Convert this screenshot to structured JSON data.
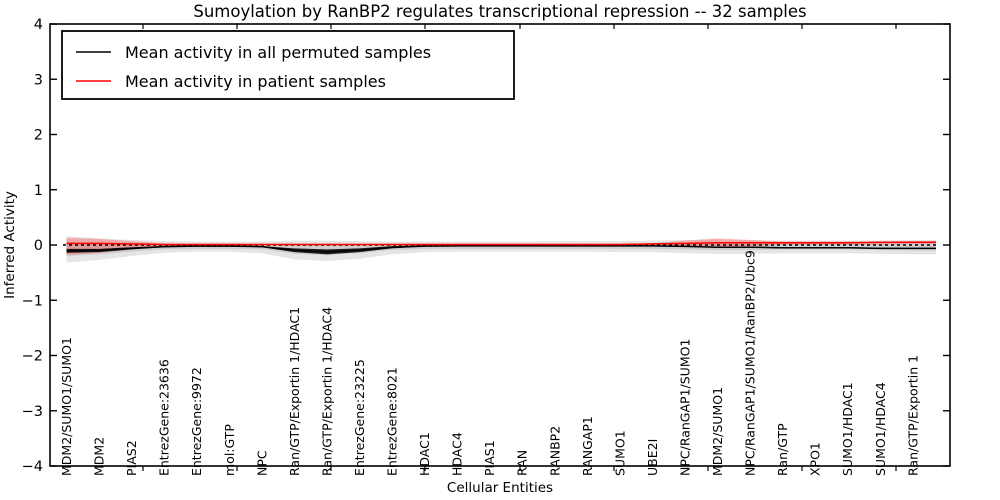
{
  "figure": {
    "title": "Sumoylation by RanBP2 regulates transcriptional repression -- 32 samples",
    "xlabel": "Cellular Entities",
    "ylabel": "Inferred Activity"
  },
  "legend": {
    "position": "upper left",
    "entries": [
      {
        "label": "Mean activity in all permuted samples",
        "color": "#000000"
      },
      {
        "label": "Mean activity in patient samples",
        "color": "#ff0000"
      }
    ]
  },
  "chart_data": {
    "type": "line",
    "title": "Sumoylation by RanBP2 regulates transcriptional repression -- 32 samples",
    "xlabel": "Cellular Entities",
    "ylabel": "Inferred Activity",
    "ylim": [
      -4,
      4
    ],
    "grid": false,
    "legend_position": "upper left",
    "y_ticks": [
      "4",
      "3",
      "2",
      "1",
      "0",
      "−1",
      "−2",
      "−3",
      "−4"
    ],
    "categories": [
      "MDM2/SUMO1/SUMO1",
      "MDM2",
      "PIAS2",
      "EntrezGene:23636",
      "EntrezGene:9972",
      "mol:GTP",
      "NPC",
      "Ran/GTP/Exportin 1/HDAC1",
      "Ran/GTP/Exportin 1/HDAC4",
      "EntrezGene:23225",
      "EntrezGene:8021",
      "HDAC1",
      "HDAC4",
      "PIAS1",
      "RAN",
      "RANBP2",
      "RANGAP1",
      "SUMO1",
      "UBE2I",
      "NPC/RanGAP1/SUMO1",
      "MDM2/SUMO1",
      "NPC/RanGAP1/SUMO1/RanBP2/Ubc9",
      "Ran/GTP",
      "XPO1",
      "SUMO1/HDAC1",
      "SUMO1/HDAC4",
      "Ran/GTP/Exportin 1"
    ],
    "series": [
      {
        "name": "Mean activity in all permuted samples",
        "color": "#000000",
        "values": [
          -0.105,
          -0.1,
          -0.06,
          -0.03,
          -0.02,
          -0.02,
          -0.03,
          -0.095,
          -0.125,
          -0.095,
          -0.04,
          -0.02,
          -0.015,
          -0.015,
          -0.015,
          -0.015,
          -0.015,
          -0.015,
          -0.015,
          -0.025,
          -0.04,
          -0.04,
          -0.05,
          -0.05,
          -0.05,
          -0.06,
          -0.06
        ]
      },
      {
        "name": "Mean activity in patient samples",
        "color": "#ff0000",
        "values": [
          0.03,
          0.03,
          0.02,
          0.01,
          0.01,
          0.01,
          0.01,
          0.01,
          0.01,
          0.01,
          0.01,
          0.01,
          0.01,
          0.01,
          0.01,
          0.01,
          0.01,
          0.01,
          0.02,
          0.03,
          0.04,
          0.04,
          0.04,
          0.04,
          0.04,
          0.05,
          0.05
        ]
      }
    ],
    "bands": [
      {
        "name": "permuted-range-outer",
        "color": "#aaaaaa",
        "opacity": 0.3,
        "upper": [
          0.16,
          0.12,
          0.09,
          0.07,
          0.06,
          0.06,
          0.06,
          0.08,
          0.08,
          0.07,
          0.06,
          0.06,
          0.06,
          0.06,
          0.06,
          0.07,
          0.07,
          0.07,
          0.08,
          0.09,
          0.1,
          0.09,
          0.08,
          0.08,
          0.08,
          0.08,
          0.09
        ],
        "lower": [
          -0.32,
          -0.27,
          -0.2,
          -0.14,
          -0.12,
          -0.12,
          -0.15,
          -0.26,
          -0.29,
          -0.25,
          -0.17,
          -0.13,
          -0.12,
          -0.12,
          -0.12,
          -0.12,
          -0.12,
          -0.13,
          -0.13,
          -0.15,
          -0.16,
          -0.16,
          -0.15,
          -0.15,
          -0.15,
          -0.16,
          -0.17
        ]
      },
      {
        "name": "permuted-range-inner",
        "color": "#999999",
        "opacity": 0.3,
        "upper": [
          0.05,
          0.04,
          0.03,
          0.02,
          0.02,
          0.02,
          0.02,
          0.03,
          0.03,
          0.02,
          0.02,
          0.02,
          0.02,
          0.02,
          0.02,
          0.02,
          0.02,
          0.02,
          0.03,
          0.03,
          0.04,
          0.03,
          0.03,
          0.03,
          0.03,
          0.03,
          0.03
        ],
        "lower": [
          -0.2,
          -0.17,
          -0.12,
          -0.08,
          -0.07,
          -0.07,
          -0.08,
          -0.16,
          -0.18,
          -0.15,
          -0.09,
          -0.07,
          -0.07,
          -0.07,
          -0.07,
          -0.07,
          -0.07,
          -0.07,
          -0.07,
          -0.08,
          -0.09,
          -0.09,
          -0.08,
          -0.08,
          -0.08,
          -0.09,
          -0.1
        ]
      },
      {
        "name": "patient-range",
        "color": "#ff2222",
        "opacity": 0.3,
        "upper": [
          0.13,
          0.11,
          0.07,
          0.03,
          0.02,
          0.02,
          0.02,
          0.02,
          0.02,
          0.02,
          0.02,
          0.02,
          0.02,
          0.02,
          0.02,
          0.02,
          0.02,
          0.02,
          0.03,
          0.08,
          0.12,
          0.09,
          0.06,
          0.06,
          0.06,
          0.06,
          0.07
        ],
        "lower": [
          -0.18,
          -0.14,
          -0.08,
          -0.02,
          0.0,
          0.0,
          0.0,
          0.0,
          0.0,
          0.0,
          0.0,
          0.0,
          0.0,
          0.0,
          0.0,
          0.0,
          0.0,
          0.0,
          0.0,
          -0.02,
          -0.04,
          -0.02,
          0.01,
          0.01,
          0.01,
          0.01,
          0.02
        ]
      },
      {
        "name": "permuted-mean-spread",
        "color": "#000000",
        "opacity": 0.85,
        "upper": [
          -0.07,
          -0.07,
          -0.04,
          -0.02,
          -0.01,
          -0.01,
          -0.02,
          -0.06,
          -0.08,
          -0.06,
          -0.02,
          -0.01,
          -0.01,
          -0.01,
          -0.01,
          -0.01,
          -0.01,
          -0.01,
          -0.01,
          -0.02,
          -0.03,
          -0.03,
          -0.04,
          -0.04,
          -0.04,
          -0.05,
          -0.05
        ],
        "lower": [
          -0.14,
          -0.13,
          -0.08,
          -0.04,
          -0.03,
          -0.03,
          -0.04,
          -0.13,
          -0.17,
          -0.13,
          -0.06,
          -0.03,
          -0.02,
          -0.02,
          -0.02,
          -0.02,
          -0.02,
          -0.02,
          -0.02,
          -0.03,
          -0.05,
          -0.05,
          -0.06,
          -0.06,
          -0.06,
          -0.07,
          -0.07
        ]
      }
    ],
    "zero_line": {
      "style": "dashed",
      "color": "#000000",
      "value": 0
    }
  }
}
